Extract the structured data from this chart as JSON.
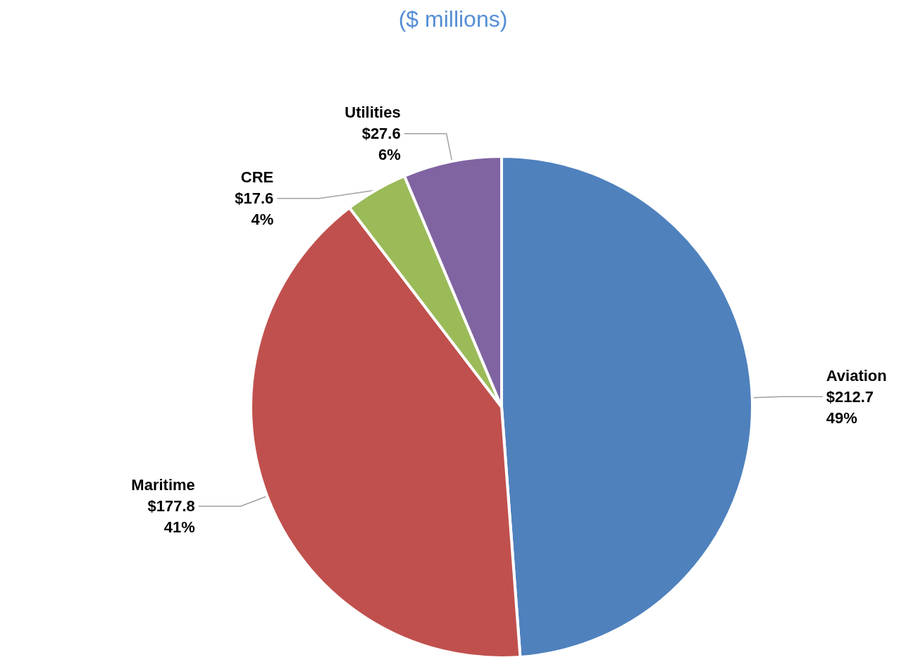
{
  "chart_data": {
    "type": "pie",
    "title": "($ millions)",
    "categories": [
      "Aviation",
      "Maritime",
      "CRE",
      "Utilities"
    ],
    "values": [
      212.7,
      177.8,
      17.6,
      27.6
    ],
    "colors": [
      "#4f81bd",
      "#c0504d",
      "#9bbb59",
      "#8064a2"
    ],
    "value_labels": [
      "$212.7\n49%",
      "$177.8\n41%",
      "$17.6\n4%",
      "$27.6\n6%"
    ],
    "legend": false
  }
}
